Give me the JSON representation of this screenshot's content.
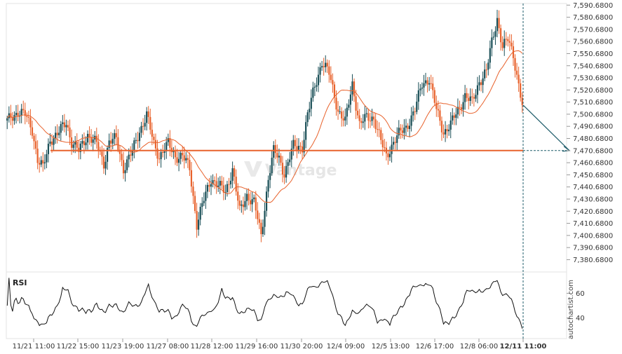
{
  "chart_data": {
    "type": "candlestick",
    "y_ticks": [
      "7,590.6800",
      "7,580.6800",
      "7,570.6800",
      "7,560.6800",
      "7,550.6800",
      "7,540.6800",
      "7,530.6800",
      "7,520.6800",
      "7,510.6800",
      "7,500.6800",
      "7,490.6800",
      "7,480.6800",
      "7,470.6800",
      "7,460.6800",
      "7,450.6800",
      "7,440.6800",
      "7,430.6800",
      "7,420.6800",
      "7,410.6800",
      "7,400.6800",
      "7,390.6800",
      "7,380.6800"
    ],
    "ylim": [
      7374,
      7592
    ],
    "x_ticks": [
      "11/21 11:00",
      "11/22 15:00",
      "11/23 19:00",
      "11/27 08:00",
      "11/28 12:00",
      "11/29 16:00",
      "11/30 20:00",
      "12/4 09:00",
      "12/5 13:00",
      "12/6 17:00",
      "12/8 06:00",
      "12/11 11:00"
    ],
    "current_x_label": "12/11 11:00",
    "resistance_level": 7470.68,
    "forecast_target": 7470.68,
    "rsi": {
      "label": "RSI",
      "ticks": [
        "60",
        "40"
      ],
      "ylim": [
        25,
        75
      ]
    },
    "watermark": "Vantage",
    "brand": "autochartist.com",
    "colors": {
      "up": "#1a4f57",
      "down": "#e8622c",
      "level": "#e8622c",
      "ma": "#e8622c",
      "rsi": "#111111",
      "forecast": "#1f5d6b"
    }
  }
}
